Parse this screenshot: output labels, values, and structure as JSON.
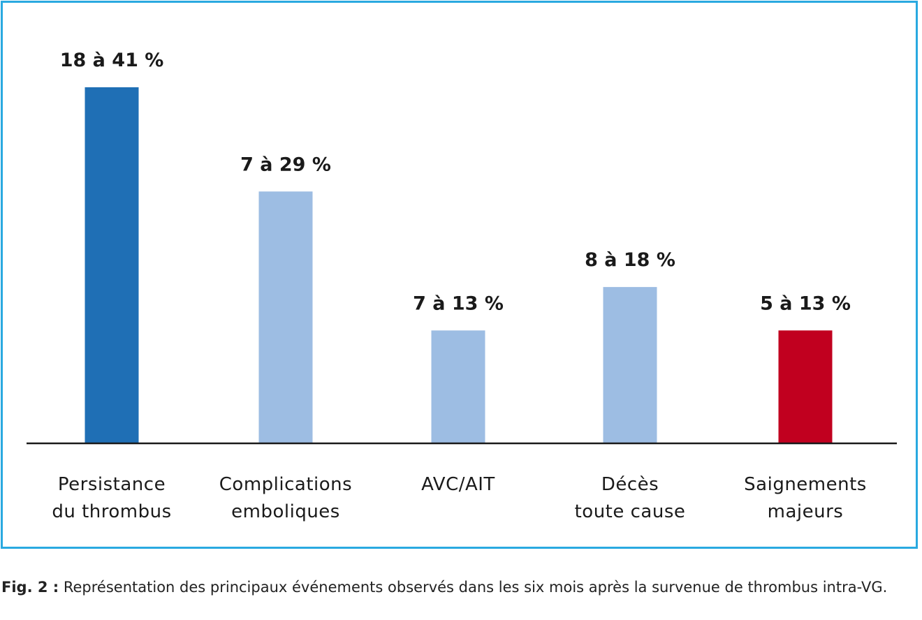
{
  "chart_data": {
    "type": "bar",
    "categories": [
      [
        "Persistance",
        "du thrombus"
      ],
      [
        "Complications",
        "emboliques"
      ],
      [
        "AVC/AIT"
      ],
      [
        "Décès",
        "toute cause"
      ],
      [
        "Saignements",
        "majeurs"
      ]
    ],
    "ranges": [
      [
        18,
        41
      ],
      [
        7,
        29
      ],
      [
        7,
        13
      ],
      [
        8,
        18
      ],
      [
        5,
        13
      ]
    ],
    "values": [
      41,
      29,
      13,
      18,
      13
    ],
    "value_labels": [
      "18 à 41 %",
      "7 à 29 %",
      "7 à 13 %",
      "8 à 18 %",
      "5 à 13 %"
    ],
    "colors": [
      "#1f6fb5",
      "#9dbde3",
      "#9dbde3",
      "#9dbde3",
      "#c1001f"
    ],
    "ylim": [
      0,
      45
    ],
    "grid": false,
    "legend": "none"
  },
  "caption": {
    "label": "Fig. 2 :",
    "text": " Représentation des principaux événements observés dans les six mois après la survenue de thrombus intra-VG."
  }
}
